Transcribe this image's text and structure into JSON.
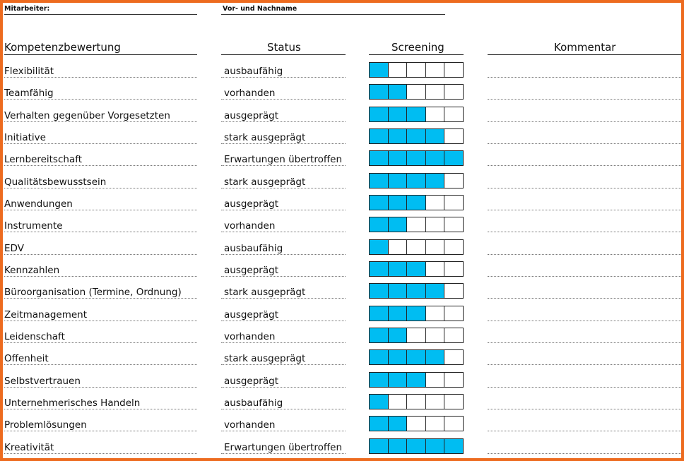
{
  "header": {
    "employee_label": "Mitarbeiter:",
    "name_label": "Vor- und Nachname"
  },
  "columns": {
    "competency": "Kompetenzbewertung",
    "status": "Status",
    "screening": "Screening",
    "comment": "Kommentar"
  },
  "screening_max": 5,
  "screening_colors": {
    "filled": "#00bdf2",
    "empty": "#ffffff"
  },
  "rows": [
    {
      "name": "Flexibilität",
      "status": "ausbaufähig",
      "level": 1
    },
    {
      "name": "Teamfähig",
      "status": "vorhanden",
      "level": 2
    },
    {
      "name": "Verhalten gegenüber Vorgesetzten",
      "status": "ausgeprägt",
      "level": 3
    },
    {
      "name": "Initiative",
      "status": "stark ausgeprägt",
      "level": 4
    },
    {
      "name": "Lernbereitschaft",
      "status": "Erwartungen übertroffen",
      "level": 5
    },
    {
      "name": "Qualitätsbewusstsein",
      "status": "stark ausgeprägt",
      "level": 4
    },
    {
      "name": "Anwendungen",
      "status": "ausgeprägt",
      "level": 3
    },
    {
      "name": "Instrumente",
      "status": "vorhanden",
      "level": 2
    },
    {
      "name": "EDV",
      "status": "ausbaufähig",
      "level": 1
    },
    {
      "name": "Kennzahlen",
      "status": "ausgeprägt",
      "level": 3
    },
    {
      "name": "Büroorganisation (Termine, Ordnung)",
      "status": "stark ausgeprägt",
      "level": 4
    },
    {
      "name": "Zeitmanagement",
      "status": "ausgeprägt",
      "level": 3
    },
    {
      "name": "Leidenschaft",
      "status": "vorhanden",
      "level": 2
    },
    {
      "name": "Offenheit",
      "status": "stark ausgeprägt",
      "level": 4
    },
    {
      "name": "Selbstvertrauen",
      "status": "ausgeprägt",
      "level": 3
    },
    {
      "name": "Unternehmerisches Handeln",
      "status": "ausbaufähig",
      "level": 1
    },
    {
      "name": "Problemlösungen",
      "status": "vorhanden",
      "level": 2
    },
    {
      "name": "Kreativität",
      "status": "Erwartungen übertroffen",
      "level": 5
    }
  ]
}
